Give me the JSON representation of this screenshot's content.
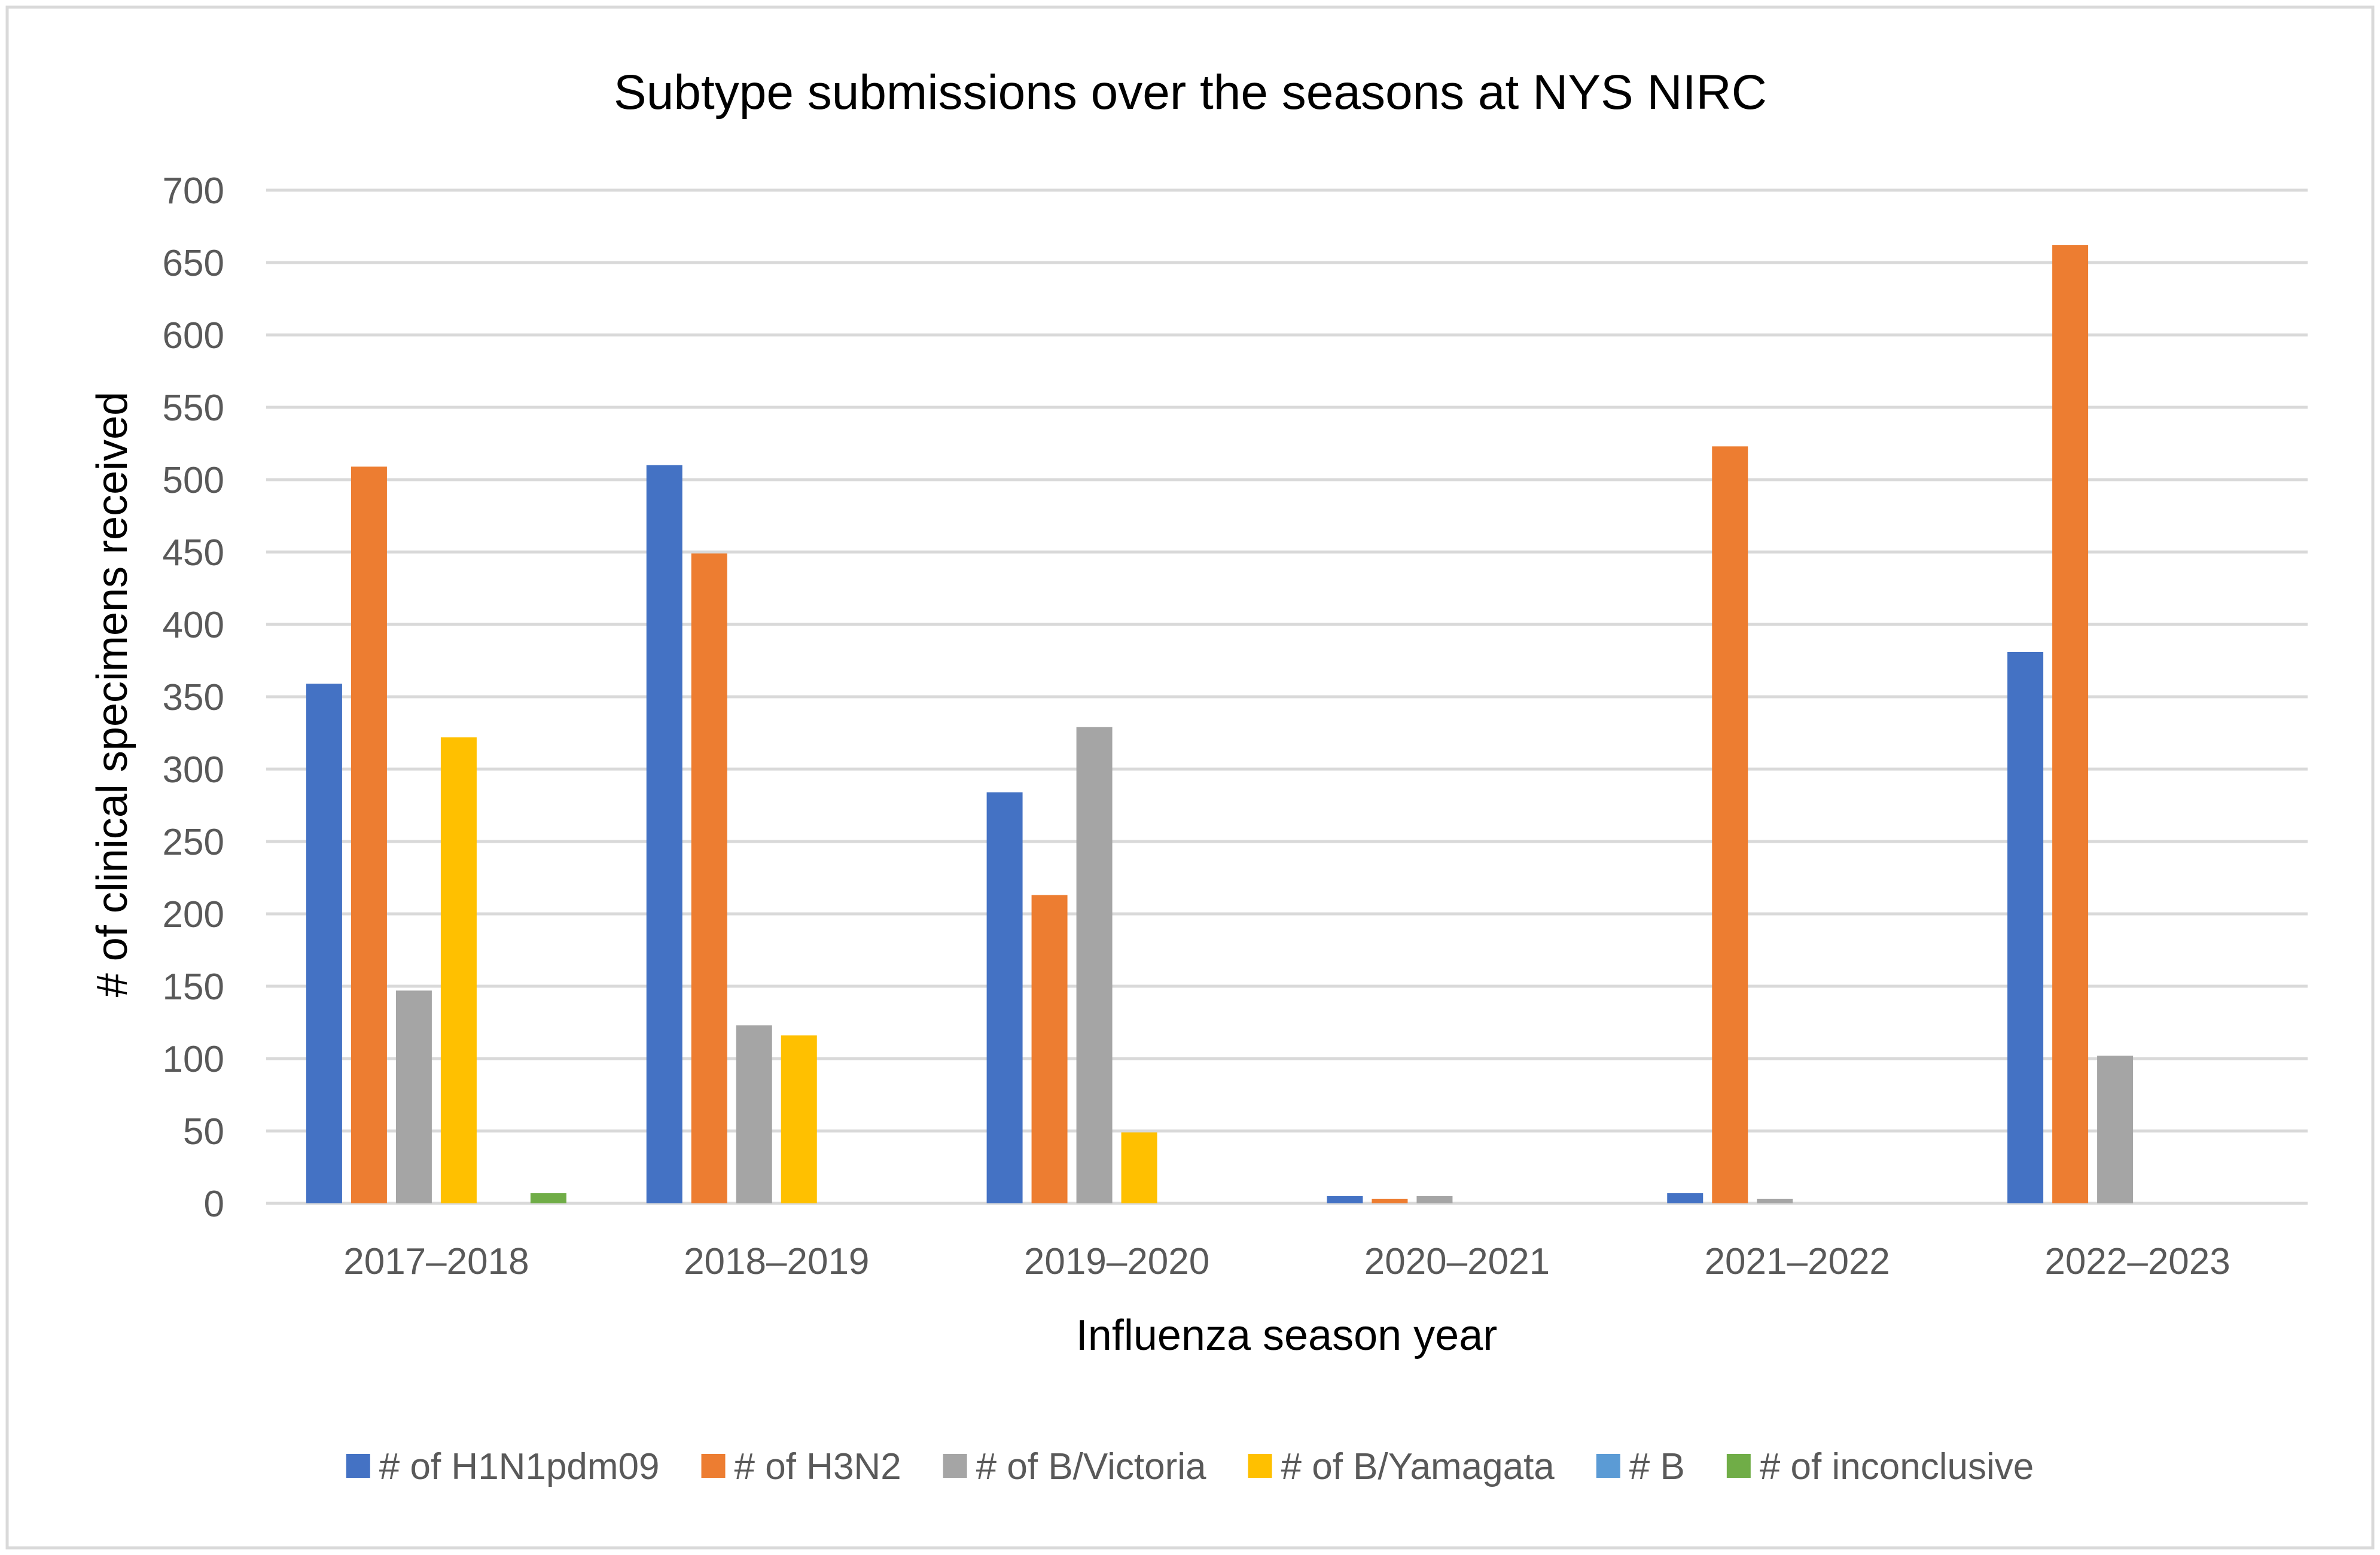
{
  "chart_data": {
    "type": "bar",
    "title": "Subtype submissions over the seasons at NYS NIRC",
    "xlabel": "Influenza season year",
    "ylabel": "# of clinical specimens received",
    "ylim": [
      0,
      700
    ],
    "yticks": [
      0,
      50,
      100,
      150,
      200,
      250,
      300,
      350,
      400,
      450,
      500,
      550,
      600,
      650,
      700
    ],
    "grid": true,
    "legend_position": "bottom",
    "categories": [
      "2017–2018",
      "2018–2019",
      "2019–2020",
      "2020–2021",
      "2021–2022",
      "2022–2023"
    ],
    "series": [
      {
        "name": "# of H1N1pdm09",
        "color": "#4472c4",
        "values": [
          359,
          510,
          284,
          5,
          7,
          381
        ]
      },
      {
        "name": "# of H3N2",
        "color": "#ed7d31",
        "values": [
          509,
          449,
          213,
          3,
          523,
          662
        ]
      },
      {
        "name": "# of B/Victoria",
        "color": "#a5a5a5",
        "values": [
          147,
          123,
          329,
          5,
          3,
          102
        ]
      },
      {
        "name": "# of B/Yamagata",
        "color": "#ffc000",
        "values": [
          322,
          116,
          49,
          0,
          0,
          0
        ]
      },
      {
        "name": "# B",
        "color": "#5b9bd5",
        "values": [
          0,
          0,
          0,
          0,
          0,
          0
        ]
      },
      {
        "name": "# of inconclusive",
        "color": "#70ad47",
        "values": [
          7,
          0,
          0,
          0,
          0,
          0
        ]
      }
    ]
  }
}
